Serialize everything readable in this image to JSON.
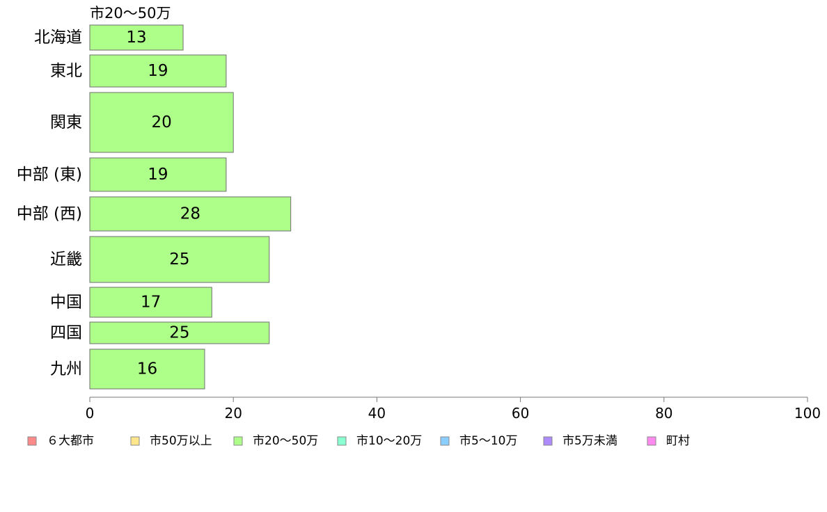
{
  "chart_data": {
    "type": "bar",
    "orientation": "horizontal",
    "title": "市20〜50万",
    "categories": [
      "北海道",
      "東北",
      "関東",
      "中部 (東)",
      "中部 (西)",
      "近畿",
      "中国",
      "四国",
      "九州"
    ],
    "values": [
      13,
      19,
      20,
      19,
      28,
      25,
      17,
      25,
      16
    ],
    "value_labels": [
      "13",
      "19",
      "20",
      "19",
      "28",
      "25",
      "17",
      "25",
      "16"
    ],
    "xlim": [
      0,
      100
    ],
    "xticks": [
      0,
      20,
      40,
      60,
      80,
      100
    ],
    "xtick_labels": [
      "0",
      "20",
      "40",
      "60",
      "80",
      "100"
    ],
    "bar_color": "#adff8a",
    "bar_edge_color": "#6e6e6e",
    "grid": false,
    "legend_position": "bottom",
    "legend": [
      {
        "label": "６大都市",
        "color": "#ff8a8a"
      },
      {
        "label": "市50万以上",
        "color": "#ffe68a"
      },
      {
        "label": "市20〜50万",
        "color": "#adff8a"
      },
      {
        "label": "市10〜20万",
        "color": "#8affcf"
      },
      {
        "label": "市5〜10万",
        "color": "#8acfff"
      },
      {
        "label": "市5万未満",
        "color": "#ae8aff"
      },
      {
        "label": "町村",
        "color": "#ff8aef"
      }
    ]
  }
}
